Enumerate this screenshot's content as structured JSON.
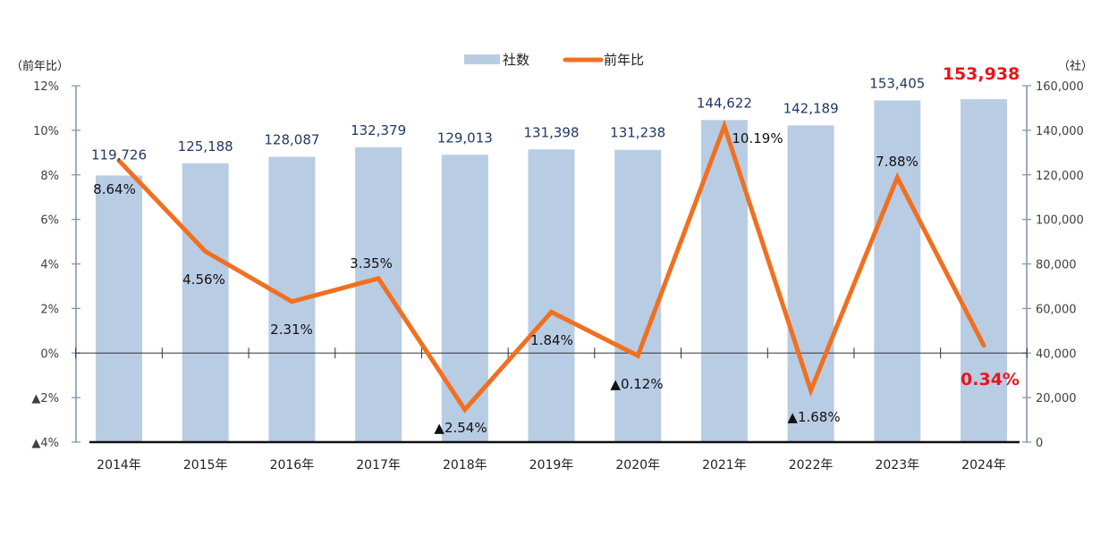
{
  "chart_data": {
    "type": "bar+line",
    "title": "",
    "categories": [
      "2014年",
      "2015年",
      "2016年",
      "2017年",
      "2018年",
      "2019年",
      "2020年",
      "2021年",
      "2022年",
      "2023年",
      "2024年"
    ],
    "series": [
      {
        "name": "社数",
        "type": "bar",
        "axis": "right",
        "color": "#b8cce4",
        "values": [
          119726,
          125188,
          128087,
          132379,
          129013,
          131398,
          131238,
          144622,
          142189,
          153405,
          153938
        ],
        "labels": [
          "119,726",
          "125,188",
          "128,087",
          "132,379",
          "129,013",
          "131,398",
          "131,238",
          "144,622",
          "142,189",
          "153,405",
          "153,938"
        ]
      },
      {
        "name": "前年比",
        "type": "line",
        "axis": "left",
        "color": "#f07020",
        "values": [
          8.64,
          4.56,
          2.31,
          3.35,
          -2.54,
          1.84,
          -0.12,
          10.19,
          -1.68,
          7.88,
          0.34
        ],
        "labels": [
          "8.64%",
          "4.56%",
          "2.31%",
          "3.35%",
          "▲2.54%",
          "1.84%",
          "▲0.12%",
          "10.19%",
          "▲1.68%",
          "7.88%",
          "0.34%"
        ]
      }
    ],
    "left_axis": {
      "label": "（前年比）",
      "range": [
        -4,
        12
      ],
      "ticks": [
        12,
        10,
        8,
        6,
        4,
        2,
        0,
        -2,
        -4
      ],
      "tick_labels": [
        "12%",
        "10%",
        "8%",
        "6%",
        "4%",
        "2%",
        "0%",
        "▲2%",
        "▲4%"
      ]
    },
    "right_axis": {
      "label": "（社）",
      "range": [
        0,
        160000
      ],
      "ticks": [
        160000,
        140000,
        120000,
        100000,
        80000,
        60000,
        40000,
        20000,
        0
      ],
      "tick_labels": [
        "160,000",
        "140,000",
        "120,000",
        "100,000",
        "80,000",
        "60,000",
        "40,000",
        "20,000",
        "0"
      ]
    },
    "legend": {
      "position": "top-center",
      "entries": [
        "社数",
        "前年比"
      ]
    },
    "highlight": {
      "category": "2024年",
      "color": "#e8141c"
    },
    "grid": false
  }
}
